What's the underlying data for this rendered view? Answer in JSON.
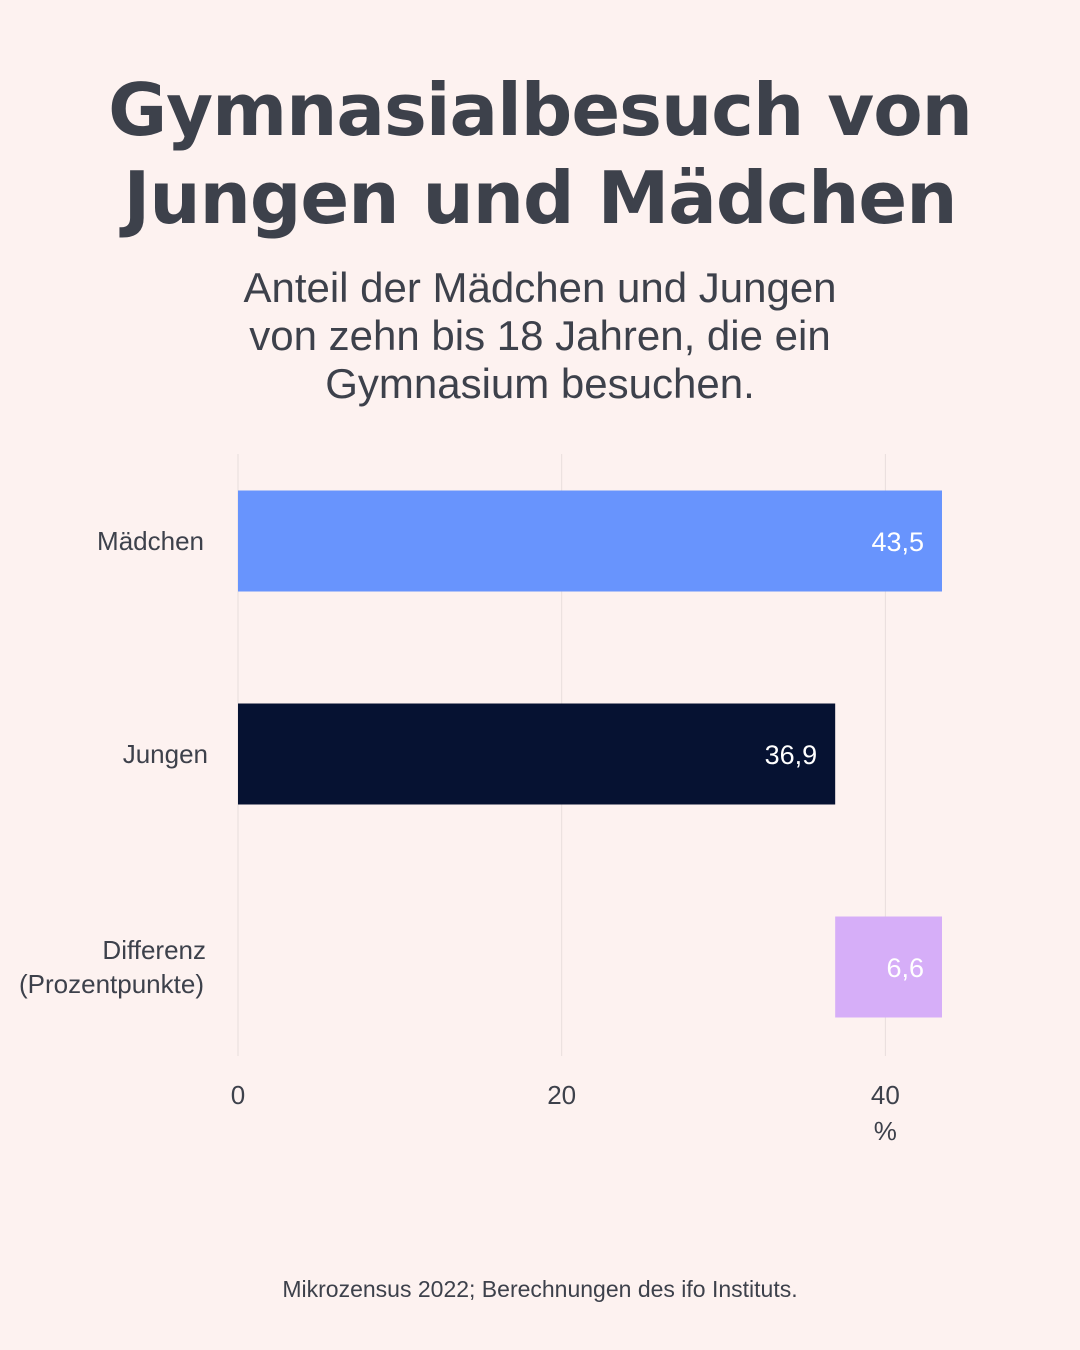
{
  "title_lines": [
    "Gymnasialbesuch von",
    "Jungen und Mädchen"
  ],
  "subtitle_lines": [
    "Anteil der Mädchen  und Jungen",
    "von zehn bis 18  Jahren, die ein",
    "Gymnasium besuchen."
  ],
  "footer": "Mikrozensus 2022;   Berechnungen des ifo Instituts.",
  "colors": {
    "background": "#fdf2f0",
    "text": "#3d414b",
    "grid": "#e8dedc",
    "maedchen": "#6894fd",
    "jungen": "#061232",
    "differenz": "#d6aef8",
    "bar_label": "#ffffff"
  },
  "chart_data": {
    "type": "bar",
    "orientation": "horizontal",
    "categories": [
      "Mädchen",
      "Jungen",
      "Differenz (Prozentpunkte)"
    ],
    "category_label_lines": [
      [
        "Mädchen"
      ],
      [
        "Jungen"
      ],
      [
        "Differenz",
        "(Prozentpunkte)"
      ]
    ],
    "values": [
      43.5,
      36.9,
      6.6
    ],
    "value_labels": [
      "43,5",
      "36,9",
      "6,6"
    ],
    "bar_starts": [
      0,
      0,
      36.9
    ],
    "bar_colors": [
      "#6894fd",
      "#061232",
      "#d6aef8"
    ],
    "xticks": [
      0,
      20,
      40
    ],
    "xtick_labels": [
      "0",
      "20",
      "40"
    ],
    "xunit": "%",
    "xlim": [
      0,
      43.5
    ],
    "grid": true
  }
}
